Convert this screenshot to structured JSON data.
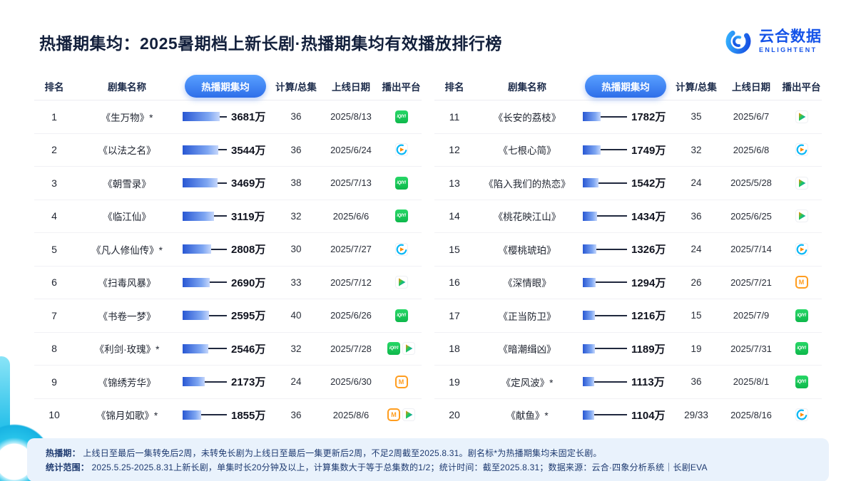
{
  "title": "热播期集均：2025暑期档上新长剧·热播期集均有效播放排行榜",
  "logo": {
    "name": "云合数据",
    "sub": "ENLIGHTENT"
  },
  "columns": {
    "rank": "排名",
    "name": "剧集名称",
    "value": "热播期集均",
    "episodes": "计算/总集",
    "date": "上线日期",
    "platform": "播出平台"
  },
  "platform_icons": {
    "iqiyi": "iqiyi-icon",
    "youku": "youku-icon",
    "tencent": "tencent-video-icon",
    "mango": "mango-tv-icon"
  },
  "colors": {
    "accent_blue": "#2e6ee9",
    "bar_start": "#2857d3",
    "bar_end": "#c6d7fb",
    "cyan_decor": "#27c3ea",
    "iqiyi_green": "#1cc749",
    "mango_orange": "#ff9d1f",
    "youku_blue": "#0bb8f5",
    "note_bg": "#e9f2fc"
  },
  "chart_data": {
    "type": "bar",
    "title": "热播期集均：2025暑期档上新长剧·热播期集均有效播放排行榜",
    "value_unit": "万",
    "xlim": [
      0,
      3681
    ],
    "legend_position": "none",
    "entries": [
      {
        "rank": "1",
        "name": "《生万物》*",
        "value": 3681,
        "value_label": "3681万",
        "episodes": "36",
        "date": "2025/8/13",
        "platforms": [
          "iqiyi"
        ]
      },
      {
        "rank": "2",
        "name": "《以法之名》",
        "value": 3544,
        "value_label": "3544万",
        "episodes": "36",
        "date": "2025/6/24",
        "platforms": [
          "youku"
        ]
      },
      {
        "rank": "3",
        "name": "《朝雪录》",
        "value": 3469,
        "value_label": "3469万",
        "episodes": "38",
        "date": "2025/7/13",
        "platforms": [
          "iqiyi"
        ]
      },
      {
        "rank": "4",
        "name": "《临江仙》",
        "value": 3119,
        "value_label": "3119万",
        "episodes": "32",
        "date": "2025/6/6",
        "platforms": [
          "iqiyi"
        ]
      },
      {
        "rank": "5",
        "name": "《凡人修仙传》*",
        "value": 2808,
        "value_label": "2808万",
        "episodes": "30",
        "date": "2025/7/27",
        "platforms": [
          "youku"
        ]
      },
      {
        "rank": "6",
        "name": "《扫毒风暴》",
        "value": 2690,
        "value_label": "2690万",
        "episodes": "33",
        "date": "2025/7/12",
        "platforms": [
          "tencent"
        ]
      },
      {
        "rank": "7",
        "name": "《书卷一梦》",
        "value": 2595,
        "value_label": "2595万",
        "episodes": "40",
        "date": "2025/6/26",
        "platforms": [
          "iqiyi"
        ]
      },
      {
        "rank": "8",
        "name": "《利剑·玫瑰》*",
        "value": 2546,
        "value_label": "2546万",
        "episodes": "32",
        "date": "2025/7/28",
        "platforms": [
          "iqiyi",
          "tencent"
        ]
      },
      {
        "rank": "9",
        "name": "《锦绣芳华》",
        "value": 2173,
        "value_label": "2173万",
        "episodes": "24",
        "date": "2025/6/30",
        "platforms": [
          "mango"
        ]
      },
      {
        "rank": "10",
        "name": "《锦月如歌》*",
        "value": 1855,
        "value_label": "1855万",
        "episodes": "36",
        "date": "2025/8/6",
        "platforms": [
          "mango",
          "tencent"
        ]
      },
      {
        "rank": "11",
        "name": "《长安的荔枝》",
        "value": 1782,
        "value_label": "1782万",
        "episodes": "35",
        "date": "2025/6/7",
        "platforms": [
          "tencent"
        ]
      },
      {
        "rank": "12",
        "name": "《七根心简》",
        "value": 1749,
        "value_label": "1749万",
        "episodes": "32",
        "date": "2025/6/8",
        "platforms": [
          "youku"
        ]
      },
      {
        "rank": "13",
        "name": "《陷入我们的热恋》",
        "value": 1542,
        "value_label": "1542万",
        "episodes": "24",
        "date": "2025/5/28",
        "platforms": [
          "tencent"
        ]
      },
      {
        "rank": "14",
        "name": "《桃花映江山》",
        "value": 1434,
        "value_label": "1434万",
        "episodes": "36",
        "date": "2025/6/25",
        "platforms": [
          "tencent"
        ]
      },
      {
        "rank": "15",
        "name": "《樱桃琥珀》",
        "value": 1326,
        "value_label": "1326万",
        "episodes": "24",
        "date": "2025/7/14",
        "platforms": [
          "youku"
        ]
      },
      {
        "rank": "16",
        "name": "《深情眼》",
        "value": 1294,
        "value_label": "1294万",
        "episodes": "26",
        "date": "2025/7/21",
        "platforms": [
          "mango"
        ]
      },
      {
        "rank": "17",
        "name": "《正当防卫》",
        "value": 1216,
        "value_label": "1216万",
        "episodes": "15",
        "date": "2025/7/9",
        "platforms": [
          "iqiyi"
        ]
      },
      {
        "rank": "18",
        "name": "《暗潮缉凶》",
        "value": 1189,
        "value_label": "1189万",
        "episodes": "19",
        "date": "2025/7/31",
        "platforms": [
          "iqiyi"
        ]
      },
      {
        "rank": "19",
        "name": "《定风波》*",
        "value": 1113,
        "value_label": "1113万",
        "episodes": "36",
        "date": "2025/8/1",
        "platforms": [
          "iqiyi"
        ]
      },
      {
        "rank": "20",
        "name": "《献鱼》*",
        "value": 1104,
        "value_label": "1104万",
        "episodes": "29/33",
        "date": "2025/8/16",
        "platforms": [
          "youku"
        ]
      }
    ]
  },
  "footer": {
    "note1_label": "热播期： ",
    "note1": "上线日至最后一集转免后2周，未转免长剧为上线日至最后一集更新后2周，不足2周截至2025.8.31。剧名标*为热播期集均未固定长剧。",
    "note2_label": "统计范围： ",
    "note2": "2025.5.25-2025.8.31上新长剧，单集时长20分钟及以上，计算集数大于等于总集数的1/2；统计时间：截至2025.8.31；数据来源：云合·四象分析系统｜长剧EVA"
  }
}
